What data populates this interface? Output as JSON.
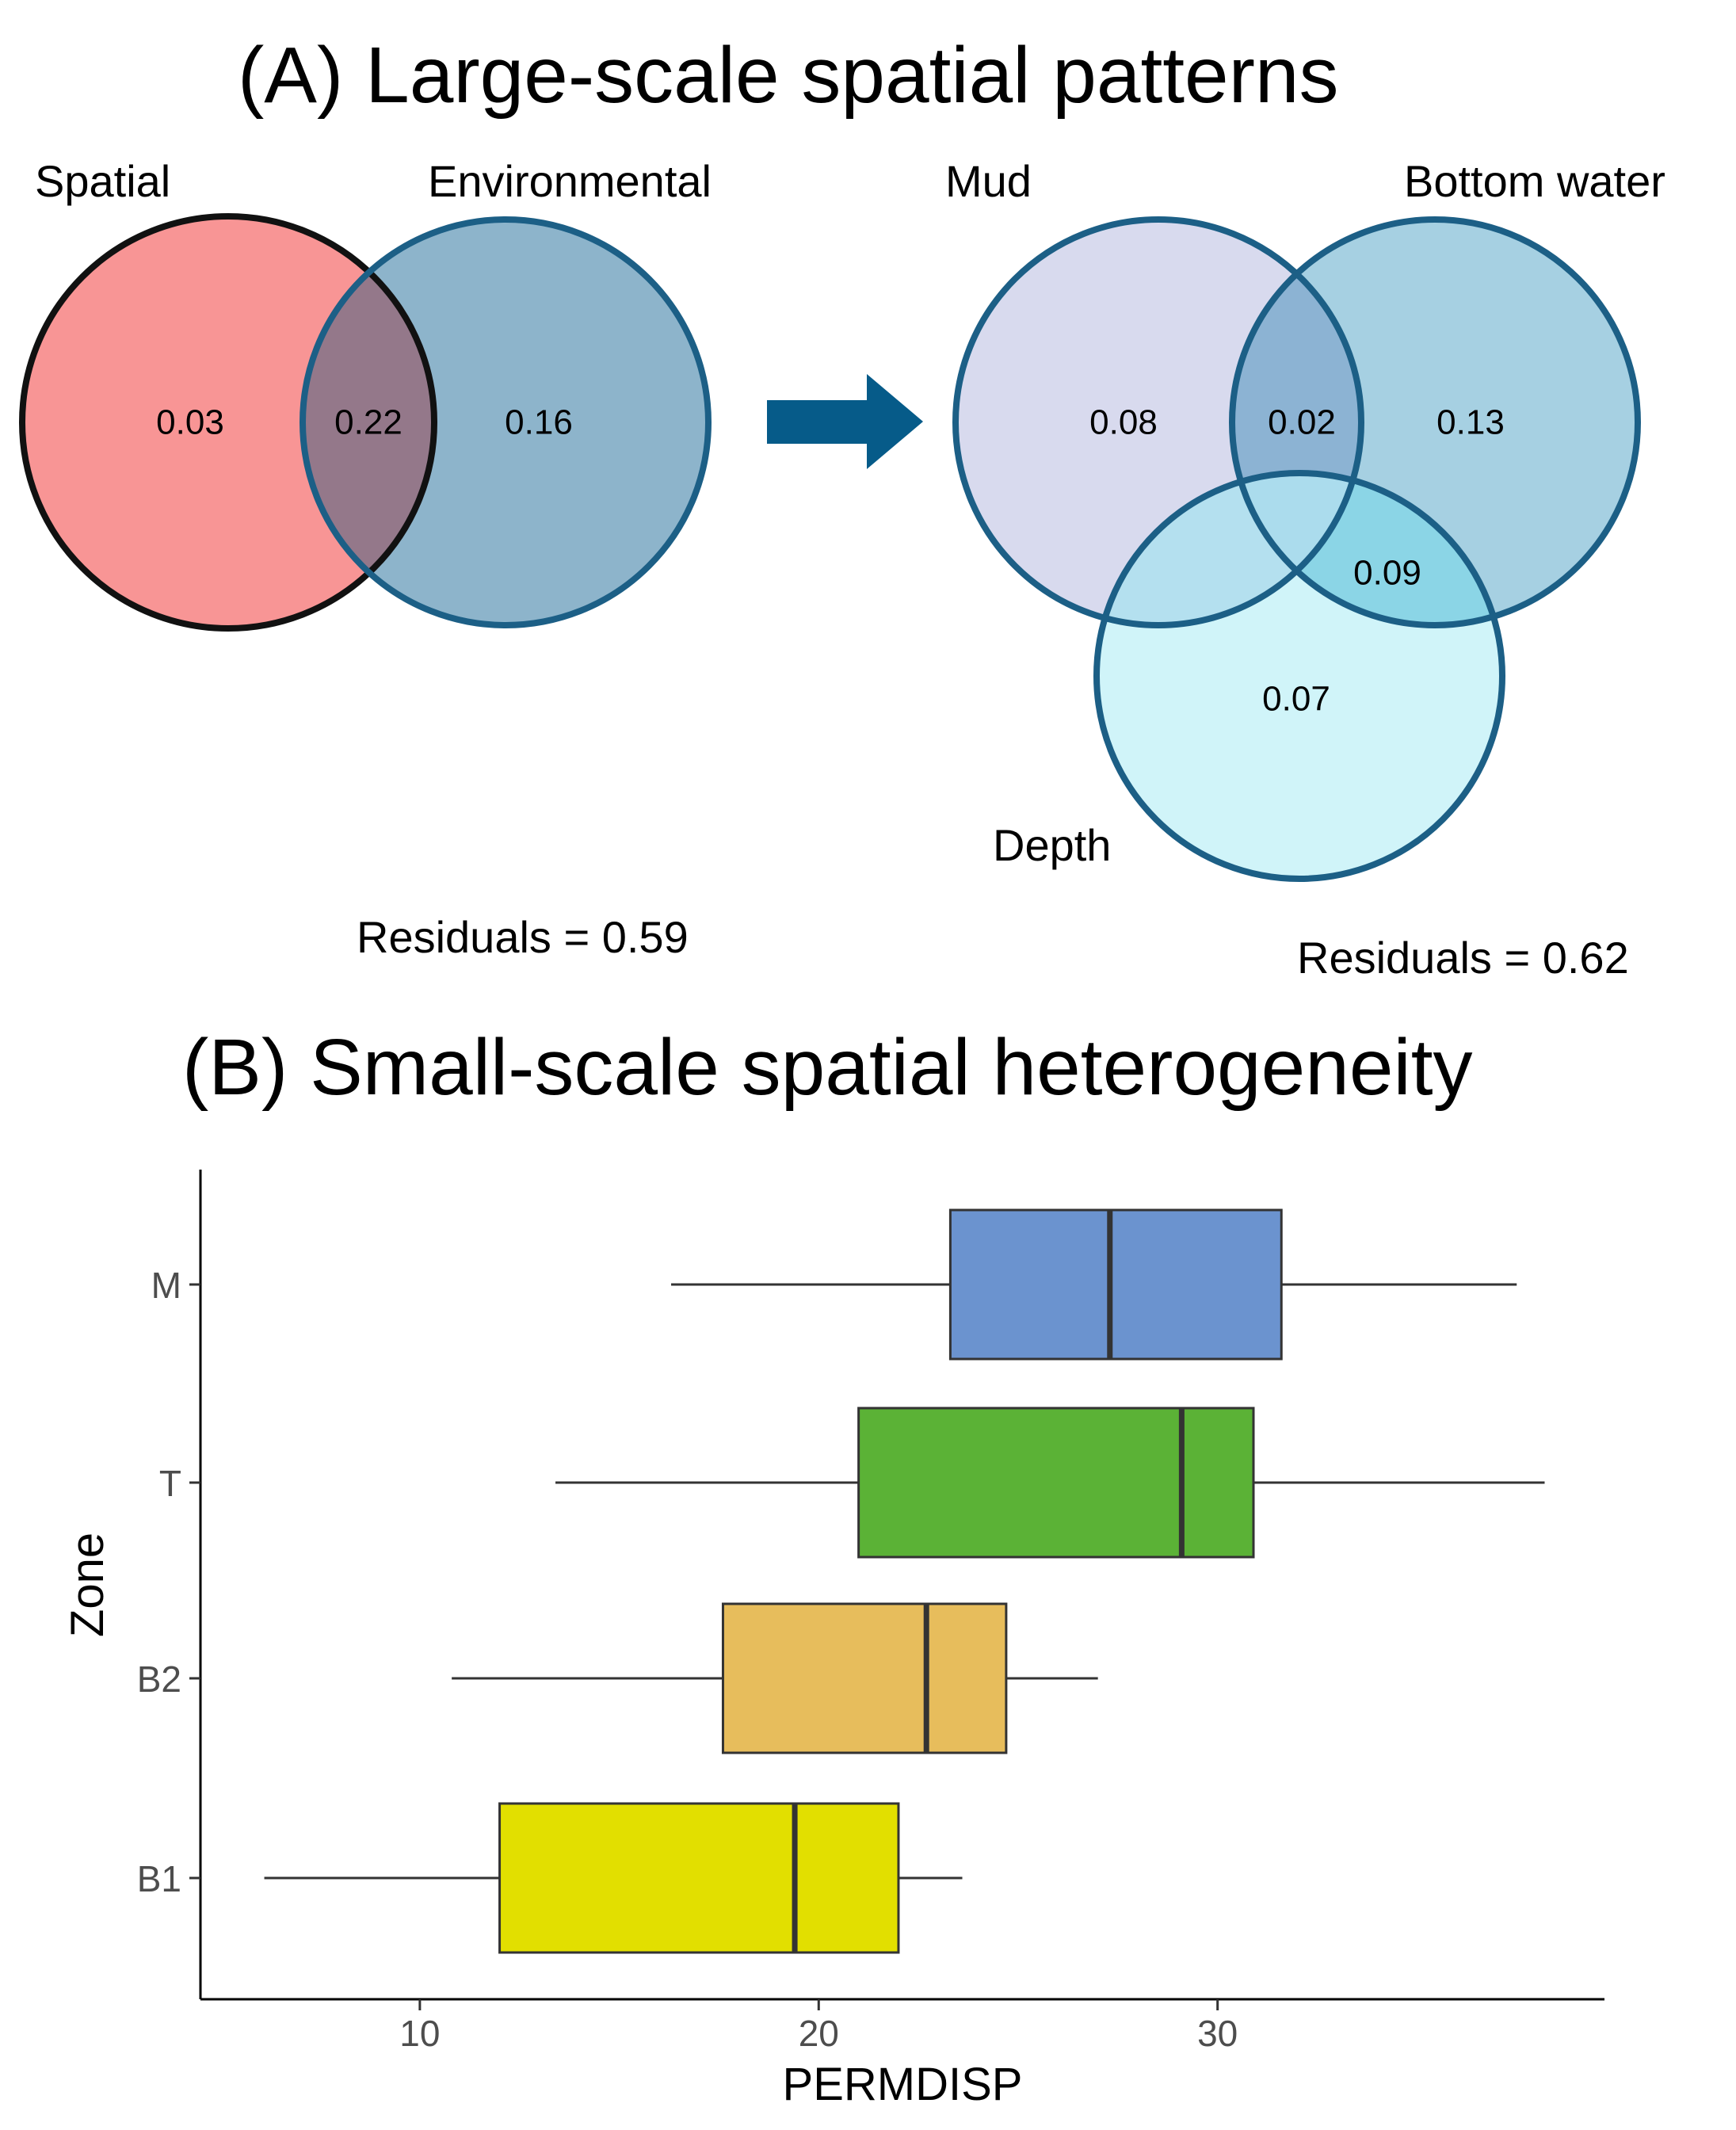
{
  "panel_a": {
    "title": "(A) Large-scale spatial patterns",
    "left_venn": {
      "sets": [
        {
          "label": "Spatial",
          "color": "#F89595",
          "stroke": "#111111"
        },
        {
          "label": "Environmental",
          "color": "#8DB4CB",
          "stroke": "#1C5F86"
        }
      ],
      "values": {
        "spatial_only": "0.03",
        "shared": "0.22",
        "environmental_only": "0.16"
      },
      "intersection_color": "#94788A",
      "residuals": "Residuals = 0.59"
    },
    "arrow_color": "#065B89",
    "right_venn": {
      "sets": [
        {
          "label": "Mud",
          "color": "#D8DAEE"
        },
        {
          "label": "Bottom water",
          "color": "#A6D0E2"
        },
        {
          "label": "Depth",
          "color": "#C6F2F8"
        }
      ],
      "stroke": "#1C5F86",
      "values": {
        "mud_only": "0.08",
        "mud_bottom": "0.02",
        "bottom_only": "0.13",
        "bottom_depth": "0.09",
        "depth_only": "0.07"
      },
      "residuals": "Residuals = 0.62"
    }
  },
  "panel_b": {
    "title": "(B) Small-scale spatial heterogeneity"
  },
  "chart_data": {
    "type": "boxplot",
    "orientation": "horizontal",
    "xlabel": "PERMDISP",
    "ylabel": "Zone",
    "xlim": [
      4.5,
      39.7
    ],
    "xticks": [
      10,
      20,
      30
    ],
    "grid": false,
    "categories": [
      "M",
      "T",
      "B2",
      "B1"
    ],
    "boxes": [
      {
        "zone": "M",
        "whisker_low": 16.3,
        "q1": 23.3,
        "median": 27.3,
        "q3": 31.6,
        "whisker_high": 37.5,
        "color": "#6B93CF"
      },
      {
        "zone": "T",
        "whisker_low": 13.4,
        "q1": 21.0,
        "median": 29.1,
        "q3": 30.9,
        "whisker_high": 38.2,
        "color": "#5BB236"
      },
      {
        "zone": "B2",
        "whisker_low": 10.8,
        "q1": 17.6,
        "median": 22.7,
        "q3": 24.7,
        "whisker_high": 27.0,
        "color": "#E7BD5C"
      },
      {
        "zone": "B1",
        "whisker_low": 6.1,
        "q1": 12.0,
        "median": 19.4,
        "q3": 22.0,
        "whisker_high": 23.6,
        "color": "#E2DF00"
      }
    ]
  }
}
